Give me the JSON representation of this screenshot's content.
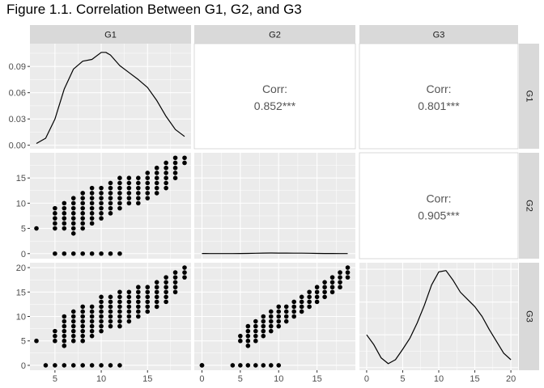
{
  "title": "Figure 1.1. Correlation Between G1, G2, and G3",
  "colors": {
    "panel_bg": "#ebebeb",
    "grid": "#ffffff",
    "strip_bg": "#d9d9d9",
    "points": "#000000",
    "line": "#000000",
    "corr_text": "#555555",
    "tick_text": "#4d4d4d"
  },
  "chart_data": {
    "type": "scatter",
    "variables": [
      "G1",
      "G2",
      "G3"
    ],
    "column_strips": [
      "G1",
      "G2",
      "G3"
    ],
    "row_strips": [
      "G1",
      "G2",
      "G3"
    ],
    "axes": {
      "x": [
        {
          "range": [
            2.3,
            19.7
          ],
          "ticks": [
            5,
            10,
            15
          ],
          "minor": [
            7.5,
            12.5,
            17.5
          ]
        },
        {
          "range": [
            -1,
            20
          ],
          "ticks": [
            0,
            5,
            10,
            15
          ],
          "minor": [
            2.5,
            7.5,
            12.5,
            17.5
          ]
        },
        {
          "range": [
            -1,
            21
          ],
          "ticks": [
            0,
            5,
            10,
            15,
            20
          ],
          "minor": [
            2.5,
            7.5,
            12.5,
            17.5
          ]
        }
      ],
      "y": [
        {
          "range": [
            -0.004,
            0.116
          ],
          "ticks": [
            0.0,
            0.03,
            0.06,
            0.09
          ],
          "tick_labels": [
            "0.00",
            "0.03",
            "0.06",
            "0.09"
          ],
          "minor": [
            0.015,
            0.045,
            0.075,
            0.105
          ]
        },
        {
          "range": [
            -1,
            20
          ],
          "ticks": [
            0,
            5,
            10,
            15
          ],
          "tick_labels": [
            "0",
            "5",
            "10",
            "15"
          ],
          "minor": [
            2.5,
            7.5,
            12.5,
            17.5
          ]
        },
        {
          "range": [
            -1,
            21
          ],
          "ticks": [
            0,
            5,
            10,
            15,
            20
          ],
          "tick_labels": [
            "0",
            "5",
            "10",
            "15",
            "20"
          ],
          "minor": [
            2.5,
            7.5,
            12.5,
            17.5
          ]
        }
      ]
    },
    "correlations": [
      {
        "row": 0,
        "col": 1,
        "label": "Corr:",
        "value": "0.852***"
      },
      {
        "row": 0,
        "col": 2,
        "label": "Corr:",
        "value": "0.801***"
      },
      {
        "row": 1,
        "col": 2,
        "label": "Corr:",
        "value": "0.905***"
      }
    ],
    "densities": [
      {
        "variable": "G1",
        "x": [
          3,
          4,
          5,
          6,
          7,
          8,
          9,
          10,
          10.5,
          11,
          12,
          13,
          14,
          15,
          16,
          17,
          18,
          19
        ],
        "y": [
          0.002,
          0.008,
          0.03,
          0.064,
          0.087,
          0.096,
          0.098,
          0.106,
          0.106,
          0.103,
          0.091,
          0.083,
          0.075,
          0.066,
          0.051,
          0.033,
          0.018,
          0.01
        ]
      },
      {
        "variable": "G2",
        "x": [
          0,
          1,
          2,
          3,
          4,
          5,
          6,
          7,
          8,
          9,
          10,
          11,
          12,
          13,
          14,
          15,
          16,
          17,
          18,
          19
        ],
        "y": [
          0.024,
          0.01,
          0.002,
          0.004,
          0.013,
          0.031,
          0.048,
          0.072,
          0.102,
          0.117,
          0.108,
          0.099,
          0.094,
          0.087,
          0.07,
          0.046,
          0.03,
          0.022,
          0.016,
          0.008
        ]
      },
      {
        "variable": "G3",
        "x": [
          0,
          1,
          2,
          3,
          4,
          5,
          6,
          7,
          8,
          9,
          10,
          11,
          12,
          13,
          14,
          15,
          16,
          17,
          18,
          19,
          20
        ],
        "y": [
          0.05,
          0.035,
          0.015,
          0.006,
          0.012,
          0.028,
          0.045,
          0.068,
          0.095,
          0.126,
          0.146,
          0.148,
          0.133,
          0.115,
          0.104,
          0.093,
          0.078,
          0.058,
          0.04,
          0.022,
          0.012
        ],
        "y_range": [
          -0.004,
          0.16
        ]
      }
    ],
    "scatter": [
      {
        "row": 1,
        "col": 0,
        "x_var": "G1",
        "y_var": "G2",
        "bands": [
          {
            "y_min": 0,
            "y_max": 0,
            "x": [
              5,
              6,
              7,
              8,
              9,
              10,
              11,
              12
            ]
          },
          {
            "x": 3,
            "y_min": 5,
            "y_max": 5
          },
          {
            "x": 5,
            "y_min": 5,
            "y_max": 9
          },
          {
            "x": 6,
            "y_min": 5,
            "y_max": 10
          },
          {
            "x": 7,
            "y_min": 4,
            "y_max": 11
          },
          {
            "x": 8,
            "y_min": 5,
            "y_max": 12
          },
          {
            "x": 9,
            "y_min": 6,
            "y_max": 13
          },
          {
            "x": 10,
            "y_min": 7,
            "y_max": 13
          },
          {
            "x": 11,
            "y_min": 8,
            "y_max": 14
          },
          {
            "x": 12,
            "y_min": 9,
            "y_max": 15
          },
          {
            "x": 13,
            "y_min": 10,
            "y_max": 15
          },
          {
            "x": 14,
            "y_min": 10,
            "y_max": 15
          },
          {
            "x": 15,
            "y_min": 11,
            "y_max": 16
          },
          {
            "x": 16,
            "y_min": 12,
            "y_max": 17
          },
          {
            "x": 17,
            "y_min": 13,
            "y_max": 18
          },
          {
            "x": 18,
            "y_min": 15,
            "y_max": 19
          },
          {
            "x": 19,
            "y_min": 18,
            "y_max": 19
          }
        ]
      },
      {
        "row": 2,
        "col": 0,
        "x_var": "G1",
        "y_var": "G3",
        "bands": [
          {
            "y_min": 0,
            "y_max": 0,
            "x": [
              4,
              5,
              6,
              7,
              8,
              9,
              10,
              11,
              12
            ]
          },
          {
            "x": 3,
            "y_min": 5,
            "y_max": 5
          },
          {
            "x": 5,
            "y_min": 5,
            "y_max": 7
          },
          {
            "x": 6,
            "y_min": 4,
            "y_max": 10
          },
          {
            "x": 7,
            "y_min": 5,
            "y_max": 11
          },
          {
            "x": 8,
            "y_min": 5,
            "y_max": 12
          },
          {
            "x": 9,
            "y_min": 6,
            "y_max": 12
          },
          {
            "x": 10,
            "y_min": 7,
            "y_max": 14
          },
          {
            "x": 11,
            "y_min": 8,
            "y_max": 14
          },
          {
            "x": 12,
            "y_min": 8,
            "y_max": 15
          },
          {
            "x": 13,
            "y_min": 9,
            "y_max": 15
          },
          {
            "x": 14,
            "y_min": 10,
            "y_max": 16
          },
          {
            "x": 15,
            "y_min": 11,
            "y_max": 16
          },
          {
            "x": 16,
            "y_min": 12,
            "y_max": 17
          },
          {
            "x": 17,
            "y_min": 13,
            "y_max": 18
          },
          {
            "x": 18,
            "y_min": 15,
            "y_max": 19
          },
          {
            "x": 19,
            "y_min": 18,
            "y_max": 20
          }
        ]
      },
      {
        "row": 2,
        "col": 1,
        "x_var": "G2",
        "y_var": "G3",
        "bands": [
          {
            "y_min": 0,
            "y_max": 0,
            "x": [
              0,
              0,
              4,
              5,
              6,
              7,
              8,
              9,
              10
            ]
          },
          {
            "x": 5,
            "y_min": 5,
            "y_max": 6
          },
          {
            "x": 6,
            "y_min": 4,
            "y_max": 8
          },
          {
            "x": 7,
            "y_min": 5,
            "y_max": 9
          },
          {
            "x": 8,
            "y_min": 6,
            "y_max": 10
          },
          {
            "x": 9,
            "y_min": 7,
            "y_max": 11
          },
          {
            "x": 10,
            "y_min": 8,
            "y_max": 12
          },
          {
            "x": 11,
            "y_min": 9,
            "y_max": 12
          },
          {
            "x": 12,
            "y_min": 10,
            "y_max": 13
          },
          {
            "x": 13,
            "y_min": 11,
            "y_max": 14
          },
          {
            "x": 14,
            "y_min": 12,
            "y_max": 15
          },
          {
            "x": 15,
            "y_min": 13,
            "y_max": 16
          },
          {
            "x": 16,
            "y_min": 14,
            "y_max": 17
          },
          {
            "x": 17,
            "y_min": 15,
            "y_max": 18
          },
          {
            "x": 18,
            "y_min": 16,
            "y_max": 19
          },
          {
            "x": 19,
            "y_min": 18,
            "y_max": 20
          }
        ]
      }
    ]
  }
}
